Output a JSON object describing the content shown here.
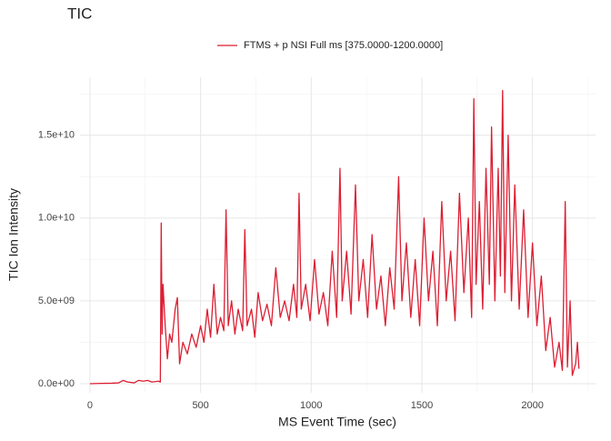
{
  "chart_data": {
    "type": "line",
    "title": "TIC",
    "x_label": "MS Event Time (sec)",
    "y_label": "TIC Ion Intensity",
    "xlim": [
      -45,
      2285
    ],
    "ylim": [
      -550000000,
      18500000000
    ],
    "xticks": [
      0,
      500,
      1000,
      1500,
      2000
    ],
    "yticks": [
      {
        "value": 0,
        "label": "0.0e+00"
      },
      {
        "value": 5000000000,
        "label": "5.0e+09"
      },
      {
        "value": 10000000000,
        "label": "1.0e+10"
      },
      {
        "value": 15000000000,
        "label": "1.5e+10"
      }
    ],
    "x_minor_ticks": [
      250,
      750,
      1250,
      1750,
      2250
    ],
    "y_minor_ticks": [
      2500000000,
      7500000000,
      12500000000,
      17500000000
    ],
    "grid": true,
    "legend": "top",
    "series": [
      {
        "name": "FTMS + p NSI Full ms [375.0000-1200.0000]",
        "color": "#dc1e32",
        "x": [
          0,
          50,
          100,
          130,
          150,
          170,
          200,
          220,
          240,
          260,
          280,
          310,
          318,
          322,
          326,
          330,
          340,
          350,
          360,
          370,
          385,
          395,
          405,
          420,
          440,
          460,
          480,
          500,
          515,
          530,
          545,
          560,
          575,
          590,
          605,
          615,
          625,
          640,
          655,
          670,
          690,
          700,
          710,
          730,
          745,
          760,
          780,
          800,
          820,
          840,
          860,
          880,
          900,
          920,
          935,
          945,
          955,
          975,
          995,
          1015,
          1035,
          1055,
          1075,
          1095,
          1115,
          1130,
          1140,
          1160,
          1180,
          1200,
          1215,
          1235,
          1255,
          1275,
          1295,
          1315,
          1335,
          1355,
          1375,
          1395,
          1410,
          1430,
          1450,
          1470,
          1490,
          1510,
          1530,
          1550,
          1570,
          1590,
          1610,
          1630,
          1650,
          1670,
          1690,
          1710,
          1725,
          1735,
          1745,
          1760,
          1775,
          1790,
          1805,
          1815,
          1830,
          1845,
          1855,
          1865,
          1875,
          1890,
          1905,
          1920,
          1940,
          1960,
          1980,
          2000,
          2020,
          2040,
          2060,
          2080,
          2100,
          2120,
          2135,
          2148,
          2158,
          2170,
          2180,
          2195,
          2203,
          2210
        ],
        "values": [
          0,
          20000000,
          30000000,
          50000000,
          200000000,
          100000000,
          50000000,
          200000000,
          150000000,
          200000000,
          100000000,
          150000000,
          100000000,
          9700000000,
          3000000000,
          6000000000,
          3500000000,
          1500000000,
          3000000000,
          2500000000,
          4500000000,
          5200000000,
          1200000000,
          2500000000,
          1800000000,
          3000000000,
          2200000000,
          3500000000,
          2500000000,
          4500000000,
          2800000000,
          6000000000,
          3000000000,
          4000000000,
          3200000000,
          10500000000,
          3500000000,
          5000000000,
          3000000000,
          4500000000,
          3200000000,
          9300000000,
          3500000000,
          4500000000,
          2800000000,
          5500000000,
          3800000000,
          4800000000,
          3500000000,
          7000000000,
          4000000000,
          5000000000,
          3800000000,
          6000000000,
          4000000000,
          11500000000,
          4500000000,
          6000000000,
          3800000000,
          7500000000,
          4200000000,
          5500000000,
          3500000000,
          8000000000,
          4000000000,
          13000000000,
          5000000000,
          8000000000,
          4200000000,
          12000000000,
          5000000000,
          7500000000,
          4000000000,
          9000000000,
          4500000000,
          6500000000,
          3500000000,
          7000000000,
          4500000000,
          12500000000,
          5000000000,
          8500000000,
          4000000000,
          7500000000,
          3500000000,
          10000000000,
          5000000000,
          8000000000,
          3500000000,
          11000000000,
          5000000000,
          8000000000,
          3800000000,
          11500000000,
          5500000000,
          10000000000,
          4000000000,
          17200000000,
          6000000000,
          11000000000,
          4500000000,
          13000000000,
          6000000000,
          15500000000,
          5000000000,
          13000000000,
          6500000000,
          17700000000,
          5500000000,
          15000000000,
          5000000000,
          12000000000,
          4500000000,
          10500000000,
          4000000000,
          8500000000,
          3500000000,
          6500000000,
          2000000000,
          4000000000,
          1000000000,
          2500000000,
          800000000,
          11000000000,
          1000000000,
          5000000000,
          500000000,
          1200000000,
          2500000000,
          900000000
        ]
      }
    ]
  }
}
